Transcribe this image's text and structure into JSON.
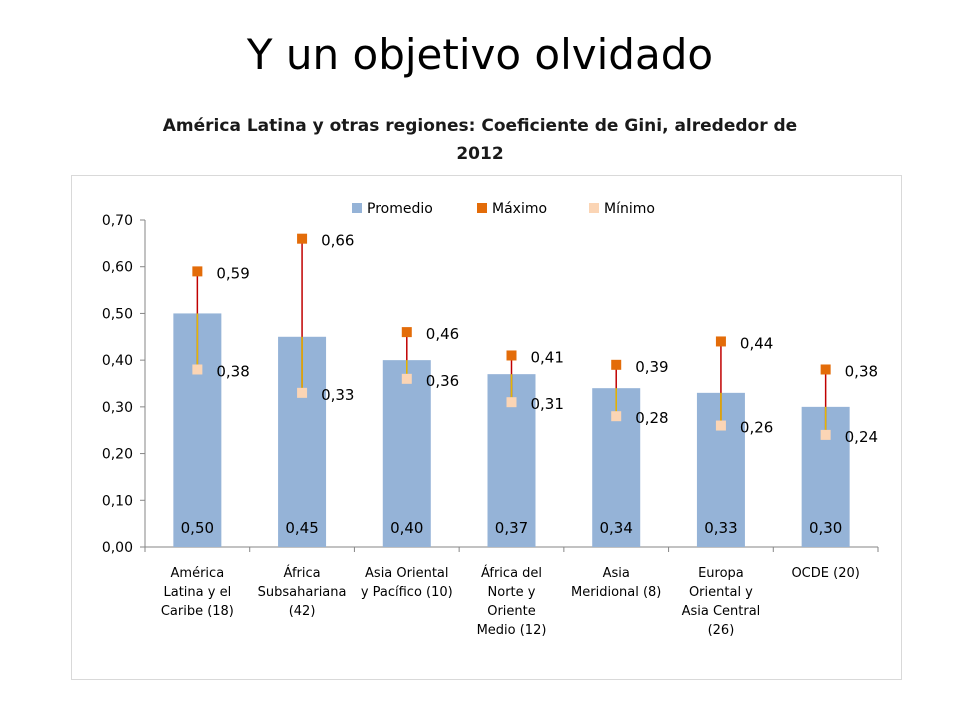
{
  "slide": {
    "title": "Y un objetivo olvidado"
  },
  "chart_data": {
    "type": "bar",
    "title": "América Latina y otras regiones: Coeficiente de Gini, alrededor de 2012",
    "title_lines": [
      "América Latina y otras regiones: Coeficiente de Gini, alrededor de",
      "2012"
    ],
    "categories": [
      [
        "América",
        "Latina y el",
        "Caribe (18)"
      ],
      [
        "África",
        "Subsahariana",
        "(42)"
      ],
      [
        "Asia Oriental",
        "y Pacífico (10)"
      ],
      [
        "África del",
        "Norte y",
        "Oriente",
        "Medio (12)"
      ],
      [
        "Asia",
        "Meridional (8)"
      ],
      [
        "Europa",
        "Oriental y",
        "Asia Central",
        "(26)"
      ],
      [
        "OCDE (20)"
      ]
    ],
    "series": [
      {
        "name": "Promedio",
        "color": "#95b3d7",
        "values": [
          0.5,
          0.45,
          0.4,
          0.37,
          0.34,
          0.33,
          0.3
        ],
        "labels": [
          "0,50",
          "0,45",
          "0,40",
          "0,37",
          "0,34",
          "0,33",
          "0,30"
        ]
      },
      {
        "name": "Máximo",
        "color": "#e36c09",
        "values": [
          0.59,
          0.66,
          0.46,
          0.41,
          0.39,
          0.44,
          0.38
        ],
        "labels": [
          "0,59",
          "0,66",
          "0,46",
          "0,41",
          "0,39",
          "0,44",
          "0,38"
        ]
      },
      {
        "name": "Mínimo",
        "color": "#fbd5b5",
        "values": [
          0.38,
          0.33,
          0.36,
          0.31,
          0.28,
          0.26,
          0.24
        ],
        "labels": [
          "0,38",
          "0,33",
          "0,36",
          "0,31",
          "0,28",
          "0,26",
          "0,24"
        ]
      }
    ],
    "y_ticks": [
      "0,00",
      "0,10",
      "0,20",
      "0,30",
      "0,40",
      "0,50",
      "0,60",
      "0,70"
    ],
    "ylim": [
      0,
      0.7
    ],
    "range_line_colors": [
      "#c00000",
      "#e6b800"
    ],
    "legend_position": "top",
    "grid": false
  }
}
